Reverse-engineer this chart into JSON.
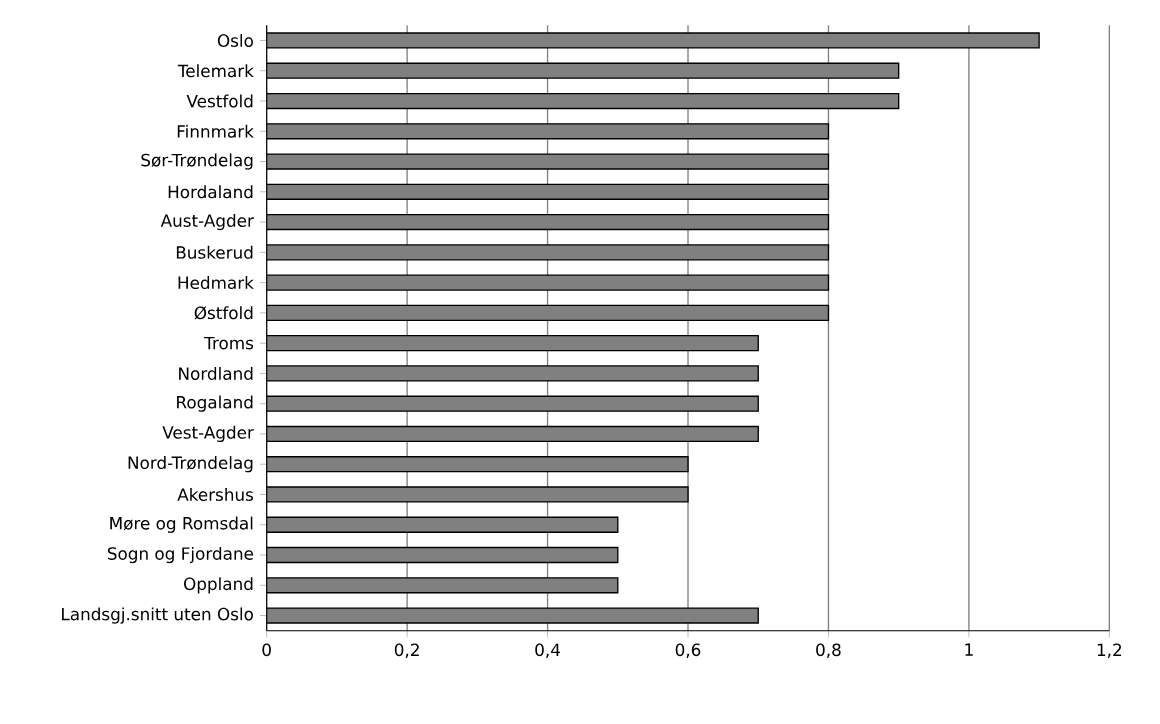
{
  "chart_data": {
    "type": "bar",
    "orientation": "horizontal",
    "categories": [
      "Oslo",
      "Telemark",
      "Vestfold",
      "Finnmark",
      "Sør-Trøndelag",
      "Hordaland",
      "Aust-Agder",
      "Buskerud",
      "Hedmark",
      "Østfold",
      "Troms",
      "Nordland",
      "Rogaland",
      "Vest-Agder",
      "Nord-Trøndelag",
      "Akershus",
      "Møre og Romsdal",
      "Sogn og Fjordane",
      "Oppland",
      "Landsgj.snitt uten Oslo"
    ],
    "values": [
      1.1,
      0.9,
      0.9,
      0.8,
      0.8,
      0.8,
      0.8,
      0.8,
      0.8,
      0.8,
      0.7,
      0.7,
      0.7,
      0.7,
      0.6,
      0.6,
      0.5,
      0.5,
      0.5,
      0.7
    ],
    "color": "#808080",
    "xlim": [
      0,
      1.2
    ],
    "xticks": [
      {
        "value": 0,
        "label": "0"
      },
      {
        "value": 0.2,
        "label": "0,2"
      },
      {
        "value": 0.4,
        "label": "0,4"
      },
      {
        "value": 0.6,
        "label": "0,6"
      },
      {
        "value": 0.8,
        "label": "0,8"
      },
      {
        "value": 1,
        "label": "1"
      },
      {
        "value": 1.2,
        "label": "1,2"
      }
    ],
    "grid": "x"
  }
}
